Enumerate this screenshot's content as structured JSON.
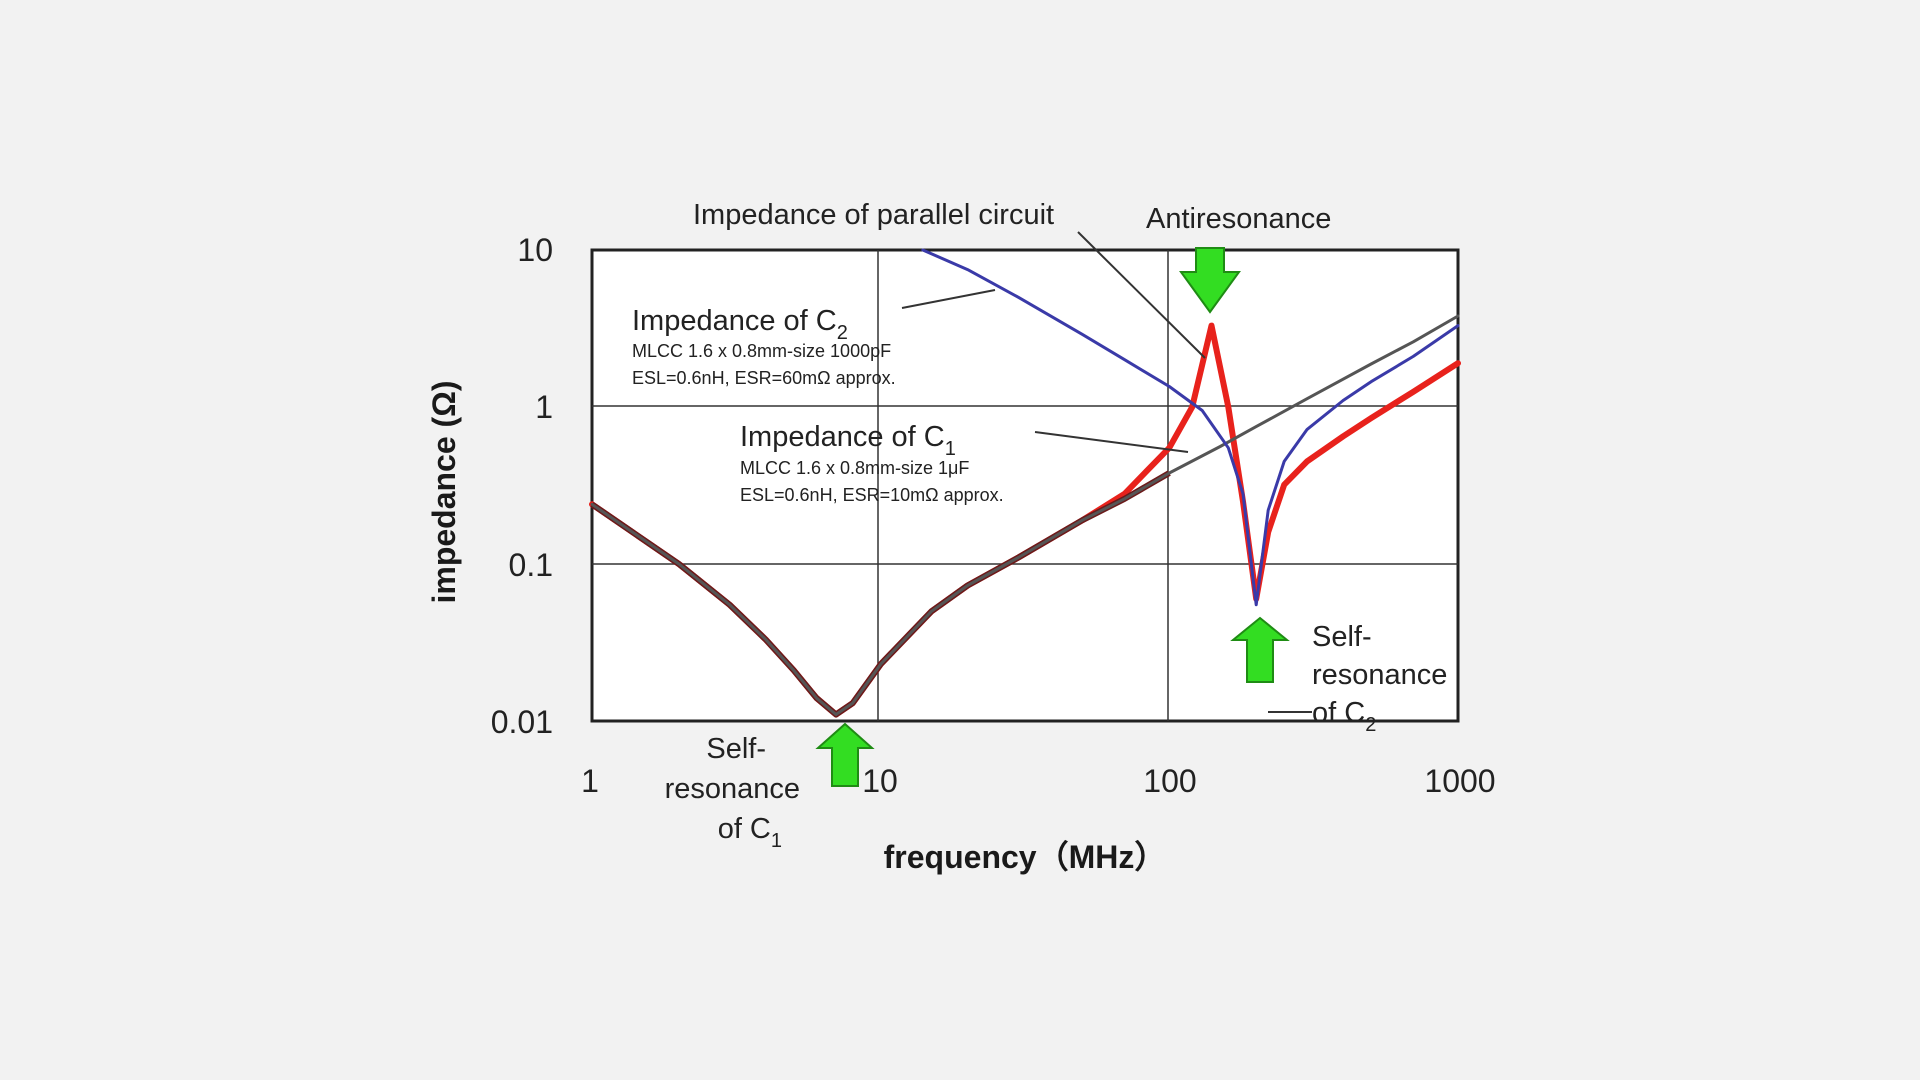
{
  "chart_data": {
    "type": "line",
    "xlabel": "frequency（MHz）",
    "ylabel": "impedance (Ω)",
    "x_scale": "log",
    "y_scale": "log",
    "xlim": [
      1,
      1000
    ],
    "ylim": [
      0.01,
      10
    ],
    "x_ticks": [
      "1",
      "10",
      "100",
      "1000"
    ],
    "y_ticks": [
      "10",
      "1",
      "0.1",
      "0.01"
    ],
    "grid": true,
    "colors": {
      "parallel": "#e8221c",
      "c1": "#555555",
      "c2": "#3a3aa8",
      "c1_dark": "#6b1a1a",
      "arrow": "#33dd22"
    },
    "series": [
      {
        "name": "Impedance of C1",
        "x": [
          1,
          2,
          3,
          4,
          5,
          6,
          7,
          8,
          10,
          15,
          20,
          30,
          50,
          70,
          100,
          150,
          200,
          300,
          500,
          700,
          1000
        ],
        "y": [
          0.24,
          0.1,
          0.055,
          0.033,
          0.021,
          0.014,
          0.011,
          0.013,
          0.023,
          0.05,
          0.073,
          0.11,
          0.19,
          0.26,
          0.38,
          0.56,
          0.75,
          1.13,
          1.88,
          2.6,
          3.8
        ]
      },
      {
        "name": "Impedance of C2",
        "x": [
          14,
          20,
          30,
          50,
          70,
          100,
          130,
          160,
          180,
          200,
          220,
          250,
          300,
          400,
          500,
          700,
          1000
        ],
        "y": [
          10,
          7.5,
          5.0,
          2.9,
          2.0,
          1.35,
          0.95,
          0.55,
          0.28,
          0.055,
          0.22,
          0.45,
          0.72,
          1.1,
          1.45,
          2.1,
          3.3
        ]
      },
      {
        "name": "Impedance of parallel circuit",
        "x": [
          1,
          2,
          3,
          4,
          5,
          6,
          7,
          8,
          10,
          15,
          20,
          30,
          50,
          70,
          100,
          120,
          140,
          160,
          180,
          200,
          220,
          250,
          300,
          400,
          500,
          700,
          1000
        ],
        "y": [
          0.24,
          0.1,
          0.055,
          0.033,
          0.021,
          0.014,
          0.011,
          0.013,
          0.023,
          0.05,
          0.073,
          0.11,
          0.19,
          0.28,
          0.55,
          1.0,
          3.3,
          1.0,
          0.25,
          0.06,
          0.16,
          0.32,
          0.45,
          0.65,
          0.85,
          1.25,
          1.9
        ]
      }
    ],
    "annotations": {
      "parallel_label": "Impedance of parallel circuit",
      "antiresonance": "Antiresonance",
      "c2_title": "Impedance of C",
      "c2_sub": "2",
      "c2_line1": "MLCC 1.6 x 0.8mm-size 1000pF",
      "c2_line2": "ESL=0.6nH, ESR=60mΩ approx.",
      "c1_title": "Impedance of C",
      "c1_sub": "1",
      "c1_line1": "MLCC 1.6 x 0.8mm-size 1μF",
      "c1_line2": "ESL=0.6nH, ESR=10mΩ approx.",
      "sr2_line1": "Self-",
      "sr2_line2": "resonance",
      "sr2_line3": "of C",
      "sr2_sub": "2",
      "sr1_line1": "Self-",
      "sr1_line2": "resonance",
      "sr1_line3": "of C",
      "sr1_sub": "1"
    }
  }
}
